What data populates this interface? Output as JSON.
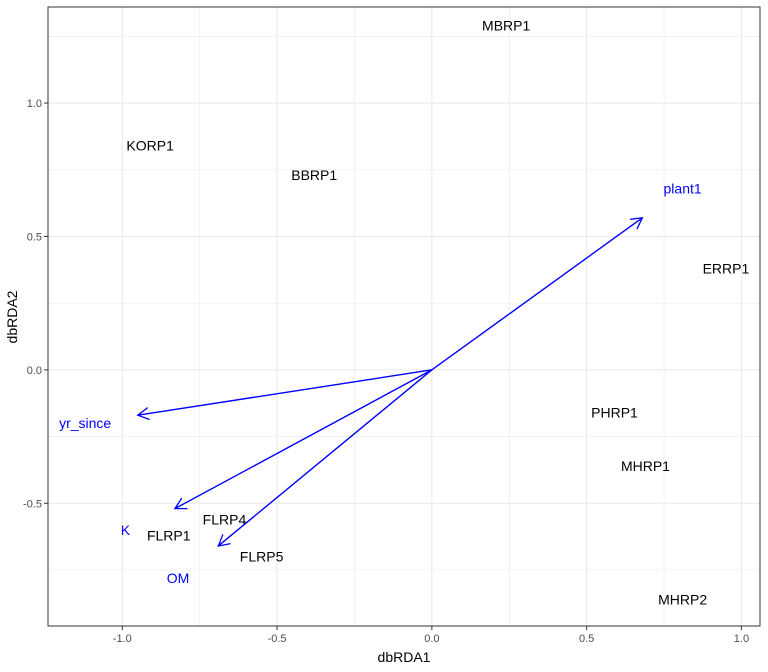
{
  "chart_data": {
    "type": "scatter",
    "title": "",
    "xlabel": "dbRDA1",
    "ylabel": "dbRDA2",
    "xlim": [
      -1.24,
      1.06
    ],
    "ylim": [
      -0.96,
      1.36
    ],
    "x_ticks": [
      -1.0,
      -0.5,
      0.0,
      0.5,
      1.0
    ],
    "x_tick_labels": [
      "-1.0",
      "-0.5",
      "0.0",
      "0.5",
      "1.0"
    ],
    "y_ticks": [
      -0.5,
      0.0,
      0.5,
      1.0
    ],
    "y_tick_labels": [
      "-0.5",
      "0.0",
      "0.5",
      "1.0"
    ],
    "grid": true,
    "colors": {
      "sites": "#000000",
      "vectors": "#0000ff",
      "grid": "#ebebeb",
      "panel_border": "#333333"
    },
    "sites": [
      {
        "label": "MBRP1",
        "x": 0.24,
        "y": 1.29
      },
      {
        "label": "KORP1",
        "x": -0.91,
        "y": 0.84
      },
      {
        "label": "BBRP1",
        "x": -0.38,
        "y": 0.73
      },
      {
        "label": "ERRP1",
        "x": 0.95,
        "y": 0.38
      },
      {
        "label": "PHRP1",
        "x": 0.59,
        "y": -0.16
      },
      {
        "label": "MHRP1",
        "x": 0.69,
        "y": -0.36
      },
      {
        "label": "FLRP4",
        "x": -0.67,
        "y": -0.56
      },
      {
        "label": "FLRP1",
        "x": -0.85,
        "y": -0.62
      },
      {
        "label": "FLRP5",
        "x": -0.55,
        "y": -0.7
      },
      {
        "label": "MHRP2",
        "x": 0.81,
        "y": -0.86
      }
    ],
    "vectors": [
      {
        "label": "plant1",
        "x_end": 0.68,
        "y_end": 0.57,
        "label_x": 0.81,
        "label_y": 0.68
      },
      {
        "label": "yr_since",
        "x_end": -0.95,
        "y_end": -0.17,
        "label_x": -1.12,
        "label_y": -0.2
      },
      {
        "label": "K",
        "x_end": -0.83,
        "y_end": -0.52,
        "label_x": -0.99,
        "label_y": -0.6
      },
      {
        "label": "OM",
        "x_end": -0.69,
        "y_end": -0.66,
        "label_x": -0.82,
        "label_y": -0.78
      }
    ]
  }
}
